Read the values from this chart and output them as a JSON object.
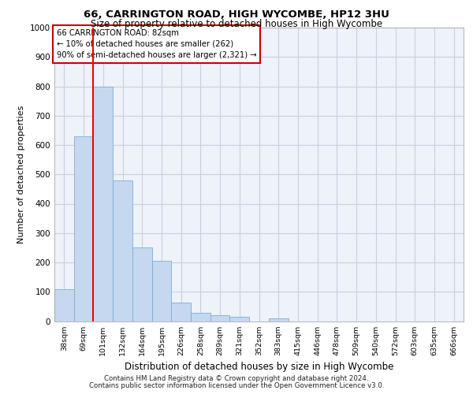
{
  "title1": "66, CARRINGTON ROAD, HIGH WYCOMBE, HP12 3HU",
  "title2": "Size of property relative to detached houses in High Wycombe",
  "xlabel": "Distribution of detached houses by size in High Wycombe",
  "ylabel": "Number of detached properties",
  "bar_labels": [
    "38sqm",
    "69sqm",
    "101sqm",
    "132sqm",
    "164sqm",
    "195sqm",
    "226sqm",
    "258sqm",
    "289sqm",
    "321sqm",
    "352sqm",
    "383sqm",
    "415sqm",
    "446sqm",
    "478sqm",
    "509sqm",
    "540sqm",
    "572sqm",
    "603sqm",
    "635sqm",
    "666sqm"
  ],
  "bar_values": [
    110,
    630,
    800,
    480,
    250,
    205,
    62,
    28,
    20,
    15,
    0,
    10,
    0,
    0,
    0,
    0,
    0,
    0,
    0,
    0,
    0
  ],
  "bar_color": "#c5d8f0",
  "bar_edgecolor": "#7aafd4",
  "ylim": [
    0,
    1000
  ],
  "yticks": [
    0,
    100,
    200,
    300,
    400,
    500,
    600,
    700,
    800,
    900,
    1000
  ],
  "red_line_x": 1.5,
  "annotation_line1": "66 CARRINGTON ROAD: 82sqm",
  "annotation_line2": "← 10% of detached houses are smaller (262)",
  "annotation_line3": "90% of semi-detached houses are larger (2,321) →",
  "annotation_box_facecolor": "#ffffff",
  "annotation_box_edgecolor": "#cc0000",
  "footer1": "Contains HM Land Registry data © Crown copyright and database right 2024.",
  "footer2": "Contains public sector information licensed under the Open Government Licence v3.0.",
  "background_color": "#ffffff",
  "axes_facecolor": "#eef2f9",
  "grid_color": "#c8d0e0"
}
